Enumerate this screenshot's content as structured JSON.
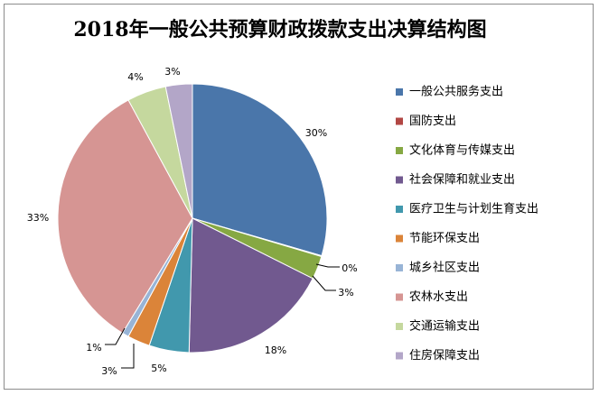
{
  "chart_data": {
    "type": "pie",
    "title": "2018年一般公共预算财政拨款支出决算结构图",
    "slices": [
      {
        "name": "一般公共服务支出",
        "value": 30,
        "label": "30%",
        "color": "#4a76aa"
      },
      {
        "name": "国防支出",
        "value": 0,
        "label": "0%",
        "color": "#b24744"
      },
      {
        "name": "文化体育与传媒支出",
        "value": 3,
        "label": "3%",
        "color": "#86a843"
      },
      {
        "name": "社会保障和就业支出",
        "value": 18,
        "label": "18%",
        "color": "#71598f"
      },
      {
        "name": "医疗卫生与计划生育支出",
        "value": 5,
        "label": "5%",
        "color": "#4198ad"
      },
      {
        "name": "节能环保支出",
        "value": 3,
        "label": "3%",
        "color": "#db8439"
      },
      {
        "name": "城乡社区支出",
        "value": 1,
        "label": "1%",
        "color": "#98b4d6"
      },
      {
        "name": "农林水支出",
        "value": 33,
        "label": "33%",
        "color": "#d69593"
      },
      {
        "name": "交通运输支出",
        "value": 4,
        "label": "4%",
        "color": "#c5d89e"
      },
      {
        "name": "住房保障支出",
        "value": 3,
        "label": "3%",
        "color": "#b3a6c8"
      }
    ],
    "legend_position": "right"
  }
}
